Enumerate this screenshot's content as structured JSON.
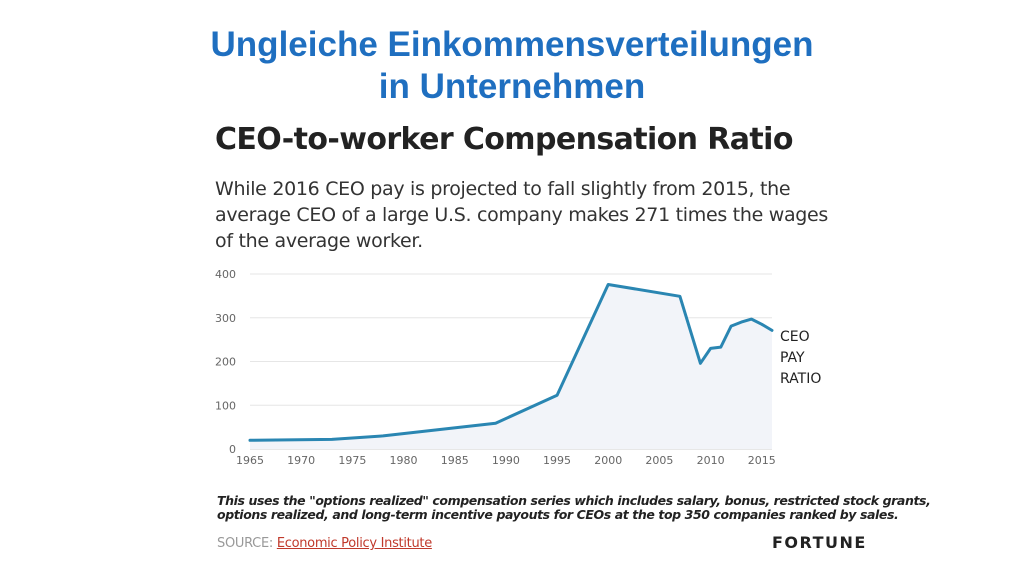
{
  "slide": {
    "title_line1": "Ungleiche Einkommensverteilungen",
    "title_line2": "in Unternehmen"
  },
  "chart_data": {
    "type": "area",
    "title": "CEO-to-worker Compensation Ratio",
    "subtitle_lines": [
      "While 2016 CEO pay is projected to fall slightly from 2015, the",
      "average CEO of a large U.S. company makes 271 times the wages",
      "of the average worker."
    ],
    "x_ticks": [
      1965,
      1970,
      1975,
      1980,
      1985,
      1990,
      1995,
      2000,
      2005,
      2010,
      2015
    ],
    "y_ticks": [
      0,
      100,
      200,
      300,
      400
    ],
    "xlim": [
      1965,
      2016
    ],
    "ylim": [
      0,
      400
    ],
    "grid": true,
    "series": [
      {
        "name_lines": [
          "CEO",
          "PAY",
          "RATIO"
        ],
        "color": "#2a86b2",
        "fill": "#f2f4f9",
        "x": [
          1965,
          1973,
          1978,
          1989,
          1995,
          2000,
          2007,
          2009,
          2010,
          2011,
          2012,
          2013,
          2014,
          2015,
          2016
        ],
        "y": [
          20,
          22,
          30,
          59,
          123,
          376,
          349,
          196,
          230,
          233,
          281,
          290,
          297,
          285,
          271
        ]
      }
    ]
  },
  "footnote": {
    "line1": "This uses the \"options realized\" compensation series which includes salary, bonus, restricted stock grants,",
    "line2": "options realized, and long-term incentive payouts for CEOs at the top 350 companies ranked by sales."
  },
  "source": {
    "label": "SOURCE:",
    "link_text": "Economic Policy Institute"
  },
  "brand": "FORTUNE"
}
